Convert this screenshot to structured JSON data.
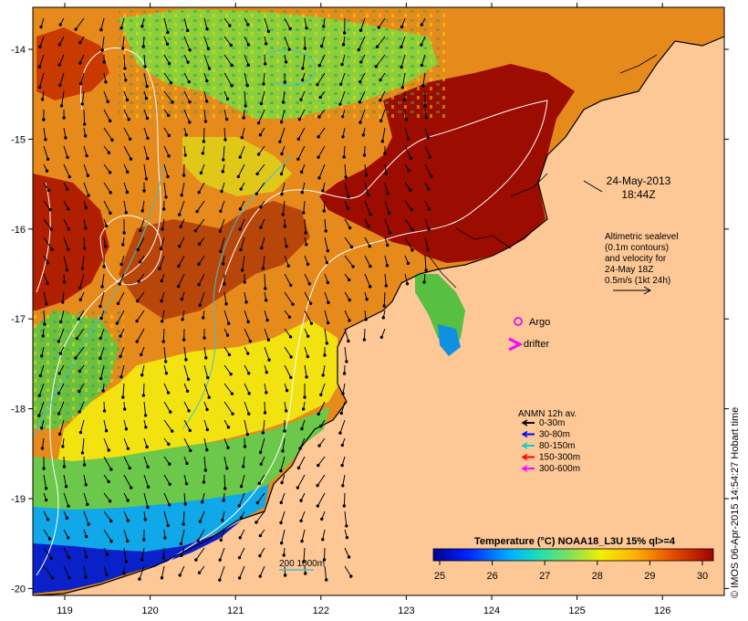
{
  "map": {
    "date_label": "24-May-2013",
    "time_label": "18:44Z",
    "x_ticks": [
      "119",
      "120",
      "121",
      "122",
      "123",
      "124",
      "125",
      "126"
    ],
    "y_ticks": [
      "-14",
      "-15",
      "-16",
      "-17",
      "-18",
      "-19",
      "-20"
    ],
    "altimetry_note": [
      "Altimetric sealevel",
      "(0.1m contours)",
      "and velocity for",
      "24-May 18Z",
      "0.5m/s (1kt 24h)"
    ],
    "argo_label": "Argo",
    "drifter_label": "drifter",
    "anmn_title": "ANMN 12h av.",
    "anmn_legend": [
      {
        "label": "0-30m",
        "color": "#000000"
      },
      {
        "label": "30-80m",
        "color": "#0000ff"
      },
      {
        "label": "80-150m",
        "color": "#00d0d0"
      },
      {
        "label": "150-300m",
        "color": "#ff0000"
      },
      {
        "label": "300-600m",
        "color": "#ff00ff"
      }
    ],
    "colorbar_title": "Temperature (°C) NOAA18_L3U 15% ql>=4",
    "colorbar_ticks": [
      "25",
      "26",
      "27",
      "28",
      "29",
      "30"
    ],
    "isobath_label": "200  1000m",
    "footer": "© IMOS 06-Apr-2015 14:54:27 Hobart time",
    "colors": {
      "land": "#fdc896",
      "argo": "#e020e0",
      "drifter": "#ff00ff",
      "isobath": "#40c0d0"
    }
  }
}
